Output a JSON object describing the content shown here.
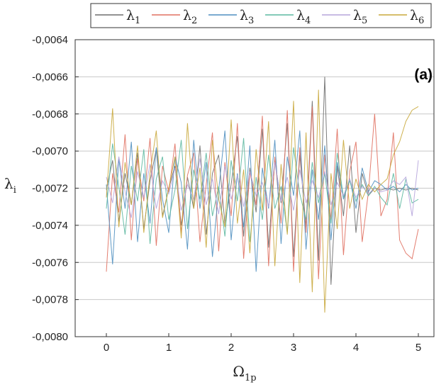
{
  "chart_data": {
    "type": "line",
    "title": "",
    "panel_label": "(a)",
    "xlabel": {
      "base": "Ω",
      "sub": "1p"
    },
    "ylabel": {
      "base": "λ",
      "sub": "i"
    },
    "xlim": [
      -0.5,
      5.25
    ],
    "ylim": [
      -0.008,
      -0.0064
    ],
    "xticks": [
      0,
      1,
      2,
      3,
      4,
      5
    ],
    "xtick_labels": [
      "0",
      "1",
      "2",
      "3",
      "4",
      "5"
    ],
    "yticks": [
      -0.008,
      -0.0078,
      -0.0076,
      -0.0074,
      -0.0072,
      -0.007,
      -0.0068,
      -0.0066,
      -0.0064
    ],
    "ytick_labels": [
      "-0,0080",
      "-0,0078",
      "-0,0076",
      "-0,0074",
      "-0,0072",
      "-0,0070",
      "-0,0068",
      "-0,0066",
      "-0,0064"
    ],
    "grid": "horizontal",
    "legend_position": "top",
    "x": [
      0.0,
      0.1,
      0.2,
      0.3,
      0.4,
      0.5,
      0.6,
      0.7,
      0.8,
      0.9,
      1.0,
      1.1,
      1.2,
      1.3,
      1.4,
      1.5,
      1.6,
      1.7,
      1.8,
      1.9,
      2.0,
      2.1,
      2.2,
      2.3,
      2.4,
      2.5,
      2.6,
      2.7,
      2.8,
      2.9,
      3.0,
      3.1,
      3.2,
      3.3,
      3.4,
      3.5,
      3.6,
      3.7,
      3.8,
      3.9,
      4.0,
      4.1,
      4.2,
      4.3,
      4.4,
      4.5,
      4.6,
      4.7,
      4.8,
      4.9,
      5.0
    ],
    "series": [
      {
        "name": "λ",
        "sub": "1",
        "color": "#6e6e6e",
        "values": [
          -0.00721,
          -0.00705,
          -0.00738,
          -0.00712,
          -0.00729,
          -0.00701,
          -0.00742,
          -0.00716,
          -0.00699,
          -0.00735,
          -0.0072,
          -0.00708,
          -0.0074,
          -0.00714,
          -0.00731,
          -0.00697,
          -0.00745,
          -0.00712,
          -0.00702,
          -0.00739,
          -0.00718,
          -0.00692,
          -0.00746,
          -0.00709,
          -0.00733,
          -0.00688,
          -0.00752,
          -0.00705,
          -0.00728,
          -0.00685,
          -0.00757,
          -0.00702,
          -0.00741,
          -0.00673,
          -0.00759,
          -0.0066,
          -0.00772,
          -0.00708,
          -0.00735,
          -0.00697,
          -0.00744,
          -0.00712,
          -0.00724,
          -0.0072,
          -0.00721,
          -0.0072,
          -0.00721,
          -0.0072,
          -0.00721,
          -0.0072,
          -0.00721
        ]
      },
      {
        "name": "λ",
        "sub": "2",
        "color": "#e07060",
        "values": [
          -0.00765,
          -0.00712,
          -0.00733,
          -0.00691,
          -0.00748,
          -0.00704,
          -0.00727,
          -0.00693,
          -0.00751,
          -0.00708,
          -0.00722,
          -0.00696,
          -0.00744,
          -0.00713,
          -0.00701,
          -0.00749,
          -0.00718,
          -0.0069,
          -0.00754,
          -0.00706,
          -0.00735,
          -0.00685,
          -0.00758,
          -0.00711,
          -0.00729,
          -0.00681,
          -0.00762,
          -0.00703,
          -0.00739,
          -0.00678,
          -0.00765,
          -0.00698,
          -0.00744,
          -0.00676,
          -0.00769,
          -0.00702,
          -0.00737,
          -0.00688,
          -0.00756,
          -0.00711,
          -0.00695,
          -0.00749,
          -0.00722,
          -0.0068,
          -0.00735,
          -0.00726,
          -0.0069,
          -0.00748,
          -0.00755,
          -0.00758,
          -0.00742
        ]
      },
      {
        "name": "λ",
        "sub": "3",
        "color": "#4f8fc0",
        "values": [
          -0.00718,
          -0.00761,
          -0.00704,
          -0.00731,
          -0.00695,
          -0.00749,
          -0.00712,
          -0.00739,
          -0.00698,
          -0.00726,
          -0.00744,
          -0.00703,
          -0.00717,
          -0.00753,
          -0.00694,
          -0.00731,
          -0.00706,
          -0.00757,
          -0.00721,
          -0.00689,
          -0.00748,
          -0.00712,
          -0.00741,
          -0.00697,
          -0.00765,
          -0.00709,
          -0.00731,
          -0.00694,
          -0.0075,
          -0.00703,
          -0.00724,
          -0.00689,
          -0.00753,
          -0.0071,
          -0.00737,
          -0.00697,
          -0.00748,
          -0.00706,
          -0.00726,
          -0.00715,
          -0.00731,
          -0.00709,
          -0.00722,
          -0.00716,
          -0.00718,
          -0.00721,
          -0.00719,
          -0.00722,
          -0.00718,
          -0.00721,
          -0.0072
        ]
      },
      {
        "name": "λ",
        "sub": "4",
        "color": "#5cb8a0",
        "values": [
          -0.00731,
          -0.00696,
          -0.00719,
          -0.00745,
          -0.00708,
          -0.00727,
          -0.00699,
          -0.0075,
          -0.00715,
          -0.00703,
          -0.00737,
          -0.00721,
          -0.00694,
          -0.00742,
          -0.0071,
          -0.00726,
          -0.00701,
          -0.00735,
          -0.00719,
          -0.00746,
          -0.00705,
          -0.00727,
          -0.00693,
          -0.00749,
          -0.00714,
          -0.00737,
          -0.00702,
          -0.00731,
          -0.00719,
          -0.00744,
          -0.00698,
          -0.00723,
          -0.00737,
          -0.00706,
          -0.00728,
          -0.00712,
          -0.00739,
          -0.00701,
          -0.00725,
          -0.00716,
          -0.00727,
          -0.00718,
          -0.00724,
          -0.00719,
          -0.00725,
          -0.00729,
          -0.00712,
          -0.00731,
          -0.00715,
          -0.00728,
          -0.00726
        ]
      },
      {
        "name": "λ",
        "sub": "5",
        "color": "#b6a5dc",
        "values": [
          -0.00714,
          -0.00728,
          -0.00703,
          -0.00722,
          -0.00736,
          -0.00711,
          -0.00725,
          -0.00707,
          -0.00731,
          -0.00716,
          -0.00723,
          -0.00709,
          -0.00732,
          -0.00718,
          -0.00726,
          -0.00704,
          -0.00729,
          -0.00715,
          -0.00734,
          -0.00708,
          -0.00726,
          -0.00713,
          -0.0073,
          -0.00711,
          -0.00724,
          -0.00717,
          -0.0073,
          -0.00706,
          -0.00727,
          -0.00714,
          -0.00732,
          -0.0071,
          -0.00728,
          -0.00716,
          -0.00725,
          -0.00711,
          -0.00729,
          -0.00717,
          -0.00724,
          -0.00715,
          -0.00725,
          -0.00719,
          -0.00723,
          -0.0072,
          -0.00722,
          -0.00721,
          -0.00716,
          -0.00718,
          -0.00714,
          -0.00735,
          -0.00705
        ]
      },
      {
        "name": "λ",
        "sub": "6",
        "color": "#c9a93c",
        "values": [
          -0.00725,
          -0.00677,
          -0.00741,
          -0.00706,
          -0.00729,
          -0.00697,
          -0.00744,
          -0.00712,
          -0.00689,
          -0.00736,
          -0.0072,
          -0.00703,
          -0.00747,
          -0.00685,
          -0.00731,
          -0.00709,
          -0.00752,
          -0.00694,
          -0.00726,
          -0.00741,
          -0.00683,
          -0.00739,
          -0.0071,
          -0.00755,
          -0.00699,
          -0.00732,
          -0.00684,
          -0.00762,
          -0.00707,
          -0.00745,
          -0.00673,
          -0.00771,
          -0.0069,
          -0.00776,
          -0.00667,
          -0.00787,
          -0.00712,
          -0.00742,
          -0.00694,
          -0.00731,
          -0.00715,
          -0.00726,
          -0.00718,
          -0.00722,
          -0.00718,
          -0.00715,
          -0.00702,
          -0.00695,
          -0.00684,
          -0.00678,
          -0.00676
        ]
      }
    ]
  }
}
